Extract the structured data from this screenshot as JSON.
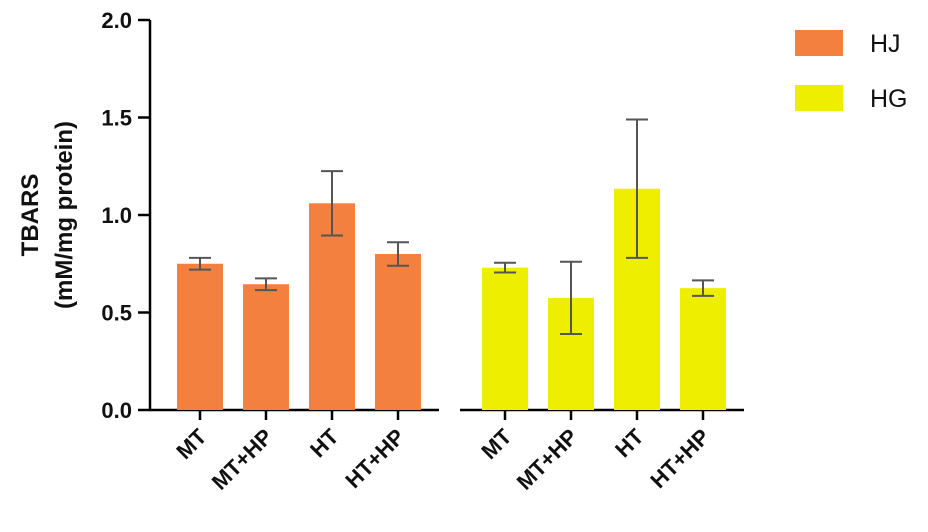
{
  "chart_data": {
    "type": "bar",
    "ylabel_line1": "TBARS",
    "ylabel_line2": "(mM/mg protein)",
    "ylim": [
      0,
      2.0
    ],
    "yticks": [
      "0.0",
      "0.5",
      "1.0",
      "1.5",
      "2.0"
    ],
    "ytick_values": [
      0,
      0.5,
      1.0,
      1.5,
      2.0
    ],
    "legend_position": "top-right",
    "groups": [
      {
        "name": "HJ",
        "color": "#f4803f",
        "categories": [
          "MT",
          "MT+HP",
          "HT",
          "HT+HP"
        ],
        "values": [
          0.75,
          0.645,
          1.06,
          0.8
        ],
        "errors": [
          0.03,
          0.03,
          0.165,
          0.06
        ]
      },
      {
        "name": "HG",
        "color": "#eeee00",
        "categories": [
          "MT",
          "MT+HP",
          "HT",
          "HT+HP"
        ],
        "values": [
          0.73,
          0.575,
          1.135,
          0.625
        ],
        "errors": [
          0.025,
          0.185,
          0.355,
          0.04
        ]
      }
    ]
  }
}
